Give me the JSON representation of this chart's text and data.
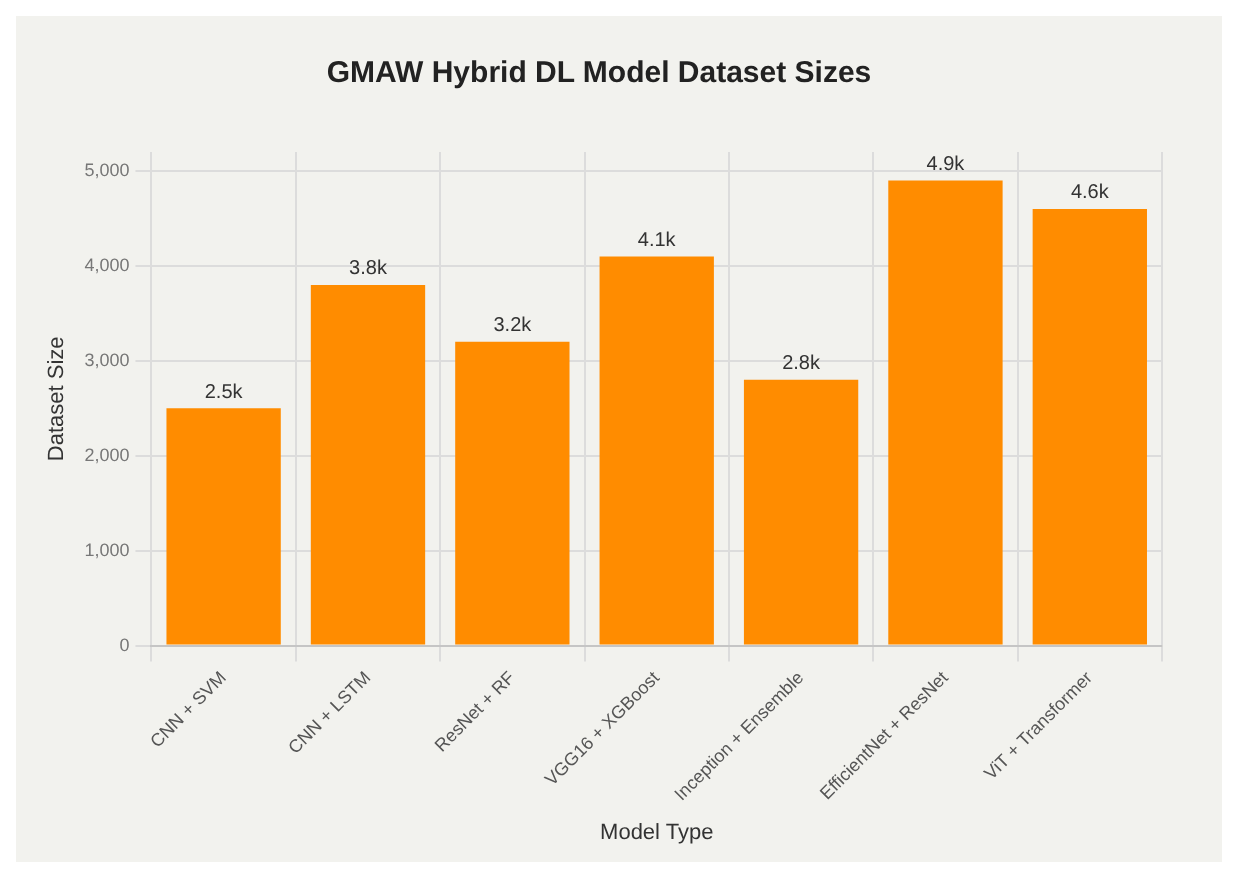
{
  "chart_data": {
    "type": "bar",
    "title": "GMAW Hybrid DL Model Dataset Sizes",
    "xlabel": "Model Type",
    "ylabel": "Dataset Size",
    "categories": [
      "CNN + SVM",
      "CNN + LSTM",
      "ResNet + RF",
      "VGG16 + XGBoost",
      "Inception + Ensemble",
      "EfficientNet + ResNet",
      "ViT + Transformer"
    ],
    "values": [
      2500,
      3800,
      3200,
      4100,
      2800,
      4900,
      4600
    ],
    "value_labels": [
      "2.5k",
      "3.8k",
      "3.2k",
      "4.1k",
      "2.8k",
      "4.9k",
      "4.6k"
    ],
    "color": "#ff8c00",
    "ylim": [
      0,
      5200
    ],
    "yticks": [
      0,
      {
        "value": 1000,
        "label": "1,000"
      },
      {
        "value": 2000,
        "label": "2,000"
      },
      {
        "value": 3000,
        "label": "3,000"
      },
      {
        "value": 4000,
        "label": "4,000"
      },
      {
        "value": 5000,
        "label": "5,000"
      }
    ],
    "grid": true
  }
}
